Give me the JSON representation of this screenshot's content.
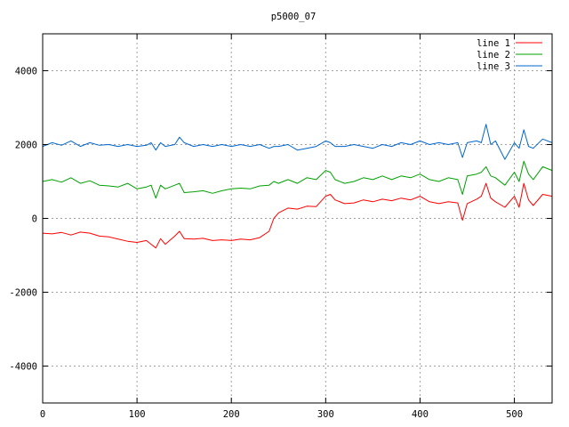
{
  "chart_data": {
    "type": "line",
    "title": "p5000_07",
    "xlabel": "",
    "ylabel": "",
    "xlim": [
      0,
      540
    ],
    "ylim": [
      -5000,
      5000
    ],
    "xticks": [
      "0",
      "100",
      "200",
      "300",
      "400",
      "500"
    ],
    "yticks": [
      "-4000",
      "-2000",
      "0",
      "2000",
      "4000"
    ],
    "xtick_values": [
      0,
      100,
      200,
      300,
      400,
      500
    ],
    "ytick_values": [
      -4000,
      -2000,
      0,
      2000,
      4000
    ],
    "grid": true,
    "legend": "top-right",
    "x": [
      0,
      10,
      20,
      30,
      40,
      50,
      60,
      70,
      80,
      90,
      100,
      110,
      115,
      120,
      125,
      130,
      140,
      145,
      150,
      160,
      170,
      180,
      190,
      200,
      210,
      220,
      230,
      240,
      245,
      250,
      260,
      270,
      280,
      290,
      300,
      305,
      310,
      320,
      330,
      340,
      350,
      360,
      370,
      380,
      390,
      400,
      410,
      420,
      430,
      440,
      445,
      450,
      460,
      465,
      470,
      475,
      480,
      490,
      500,
      505,
      510,
      515,
      520,
      530,
      540
    ],
    "series": [
      {
        "name": "line 1",
        "color": "#ff0000",
        "values": [
          -400,
          -420,
          -380,
          -450,
          -370,
          -400,
          -480,
          -500,
          -560,
          -620,
          -650,
          -600,
          -700,
          -800,
          -550,
          -700,
          -480,
          -350,
          -550,
          -560,
          -540,
          -600,
          -580,
          -600,
          -560,
          -580,
          -520,
          -350,
          0,
          150,
          280,
          250,
          330,
          320,
          600,
          650,
          500,
          400,
          420,
          500,
          450,
          520,
          480,
          550,
          500,
          600,
          450,
          400,
          450,
          420,
          -50,
          400,
          520,
          600,
          950,
          550,
          450,
          300,
          600,
          300,
          950,
          500,
          350,
          650,
          600
        ]
      },
      {
        "name": "line 2",
        "color": "#00a000",
        "values": [
          1000,
          1050,
          980,
          1100,
          950,
          1020,
          900,
          880,
          850,
          950,
          800,
          850,
          900,
          550,
          900,
          800,
          900,
          950,
          700,
          720,
          750,
          680,
          750,
          800,
          820,
          800,
          880,
          900,
          1000,
          950,
          1050,
          950,
          1100,
          1050,
          1300,
          1250,
          1050,
          950,
          1000,
          1100,
          1050,
          1150,
          1050,
          1150,
          1100,
          1200,
          1050,
          1000,
          1100,
          1050,
          650,
          1150,
          1200,
          1250,
          1400,
          1150,
          1100,
          900,
          1250,
          1000,
          1550,
          1200,
          1050,
          1400,
          1300
        ]
      },
      {
        "name": "line 3",
        "color": "#0066cc",
        "values": [
          1950,
          2050,
          1980,
          2100,
          1950,
          2050,
          1980,
          2000,
          1950,
          2000,
          1950,
          1980,
          2050,
          1850,
          2050,
          1950,
          2000,
          2200,
          2050,
          1950,
          2000,
          1950,
          2000,
          1950,
          2000,
          1950,
          2000,
          1900,
          1950,
          1950,
          2000,
          1850,
          1900,
          1950,
          2100,
          2050,
          1950,
          1950,
          2000,
          1950,
          1900,
          2000,
          1950,
          2050,
          2000,
          2100,
          2000,
          2050,
          2000,
          2050,
          1650,
          2050,
          2100,
          2050,
          2550,
          2000,
          2100,
          1600,
          2050,
          1900,
          2400,
          1950,
          1900,
          2150,
          2050
        ]
      }
    ]
  }
}
